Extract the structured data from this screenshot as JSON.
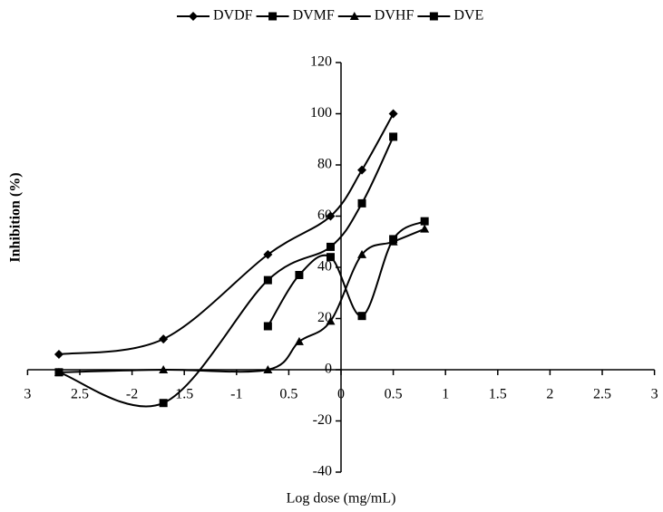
{
  "chart_data": {
    "type": "line",
    "x_label": "Log dose (mg/mL)",
    "y_label": "Inhibition (%)",
    "xlim": [
      -3,
      3
    ],
    "ylim": [
      -40,
      120
    ],
    "xticks": [
      {
        "value": -3,
        "label": "3"
      },
      {
        "value": -2.5,
        "label": "2.5"
      },
      -2,
      {
        "value": -1.5,
        "label": "1.5"
      },
      -1,
      {
        "value": -0.5,
        "label": "0.5"
      },
      0,
      0.5,
      1,
      1.5,
      2,
      2.5,
      3
    ],
    "yticks": [
      -40,
      -20,
      0,
      20,
      40,
      60,
      80,
      100,
      120
    ],
    "series": [
      {
        "name": "DVDF",
        "color": "#000000",
        "marker": "diamond",
        "x": [
          -2.7,
          -1.7,
          -0.7,
          -0.1,
          0.2,
          0.5
        ],
        "values": [
          6,
          12,
          45,
          60,
          78,
          100
        ]
      },
      {
        "name": "DVMF",
        "color": "#000000",
        "marker": "square",
        "x": [
          -2.7,
          -1.7,
          -0.7,
          -0.1,
          0.2,
          0.5
        ],
        "values": [
          -1,
          -13,
          35,
          48,
          65,
          91
        ]
      },
      {
        "name": "DVHF",
        "color": "#000000",
        "marker": "triangle",
        "x": [
          -2.7,
          -1.7,
          -0.7,
          -0.4,
          -0.1,
          0.2,
          0.5,
          0.8
        ],
        "values": [
          -1,
          0,
          0,
          11,
          19,
          45,
          50,
          55
        ]
      },
      {
        "name": "DVE",
        "color": "#000000",
        "marker": "square",
        "x": [
          -0.7,
          -0.4,
          -0.1,
          0.2,
          0.5,
          0.8
        ],
        "values": [
          17,
          37,
          44,
          21,
          51,
          58
        ]
      }
    ]
  }
}
